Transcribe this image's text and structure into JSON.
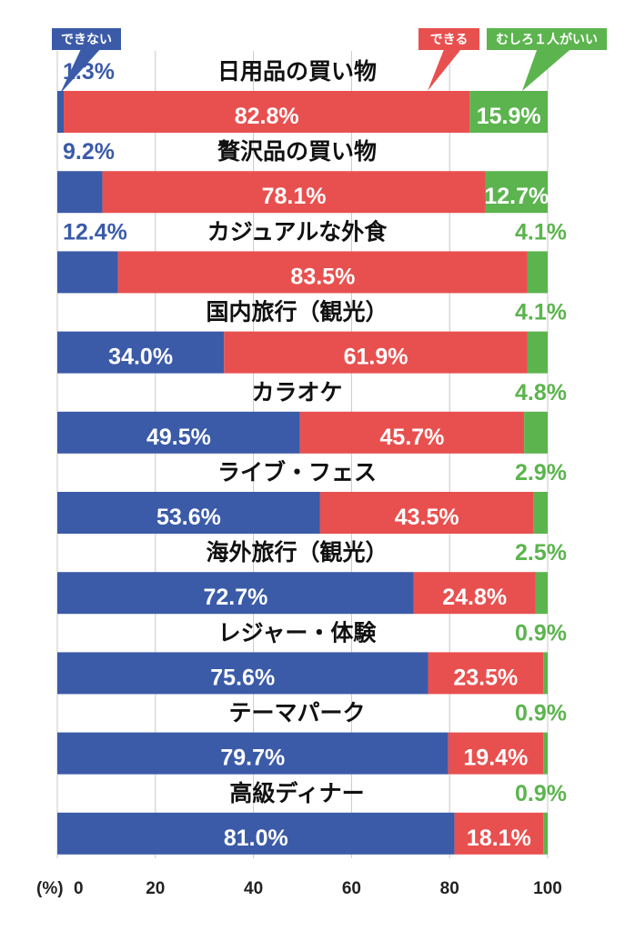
{
  "chart_data": {
    "type": "bar",
    "orientation": "horizontal",
    "stacked": true,
    "categories": [
      "日用品の買い物",
      "贅沢品の買い物",
      "カジュアルな外食",
      "国内旅行（観光）",
      "カラオケ",
      "ライブ・フェス",
      "海外旅行（観光）",
      "レジャー・体験",
      "テーマパーク",
      "高級ディナー"
    ],
    "series": [
      {
        "name": "できない",
        "color": "#3b5ba8",
        "values": [
          1.3,
          9.2,
          12.4,
          34.0,
          49.5,
          53.6,
          72.7,
          75.6,
          79.7,
          81.0
        ]
      },
      {
        "name": "できる",
        "color": "#e8504f",
        "values": [
          82.8,
          78.1,
          83.5,
          61.9,
          45.7,
          43.5,
          24.8,
          23.5,
          19.4,
          18.1
        ]
      },
      {
        "name": "むしろ１人がいい",
        "color": "#5cb44e",
        "values": [
          15.9,
          12.7,
          4.1,
          4.1,
          4.8,
          2.9,
          2.5,
          0.9,
          0.9,
          0.9
        ]
      }
    ],
    "value_labels": [
      [
        "1.3%",
        "82.8%",
        "15.9%"
      ],
      [
        "9.2%",
        "78.1%",
        "12.7%"
      ],
      [
        "12.4%",
        "83.5%",
        "4.1%"
      ],
      [
        "34.0%",
        "61.9%",
        "4.1%"
      ],
      [
        "49.5%",
        "45.7%",
        "4.8%"
      ],
      [
        "53.6%",
        "43.5%",
        "2.9%"
      ],
      [
        "72.7%",
        "24.8%",
        "2.5%"
      ],
      [
        "75.6%",
        "23.5%",
        "0.9%"
      ],
      [
        "79.7%",
        "19.4%",
        "0.9%"
      ],
      [
        "81.0%",
        "18.1%",
        "0.9%"
      ]
    ],
    "xlim": [
      0,
      100
    ],
    "x_ticks": [
      0,
      20,
      40,
      60,
      80,
      100
    ],
    "x_tick_labels": [
      "0",
      "20",
      "40",
      "60",
      "80",
      "100"
    ],
    "x_unit_label": "(%)",
    "grid": true,
    "legend": "callouts-top"
  }
}
